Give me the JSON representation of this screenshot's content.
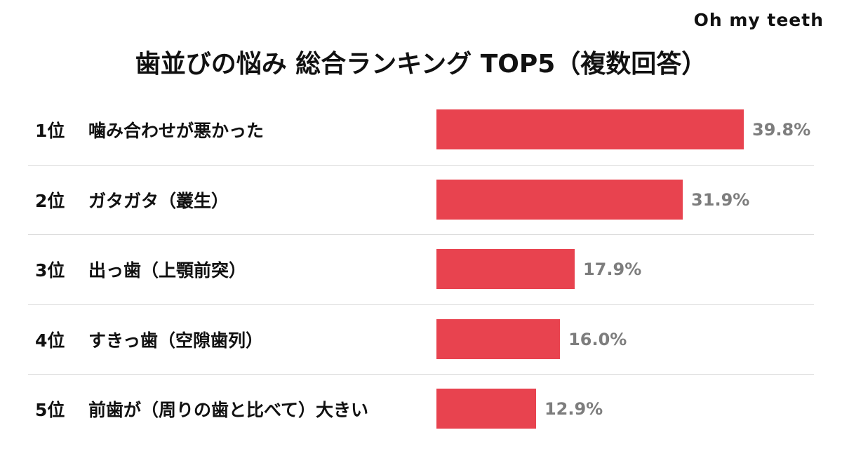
{
  "brand": "Oh my teeth",
  "chart_data": {
    "type": "bar",
    "title": "歯並びの悩み 総合ランキング TOP5（複数回答）",
    "ranks": [
      "1位",
      "2位",
      "3位",
      "4位",
      "5位"
    ],
    "categories": [
      "噛み合わせが悪かった",
      "ガタガタ（叢生）",
      "出っ歯（上顎前突）",
      "すきっ歯（空隙歯列）",
      "前歯が（周りの歯と比べて）大きい"
    ],
    "values": [
      39.8,
      31.9,
      17.9,
      16.0,
      12.9
    ],
    "value_labels": [
      "39.8%",
      "31.9%",
      "17.9%",
      "16.0%",
      "12.9%"
    ],
    "orientation": "horizontal",
    "bar_color": "#e8434f",
    "value_label_color": "#7d7d7d",
    "grid": false
  }
}
